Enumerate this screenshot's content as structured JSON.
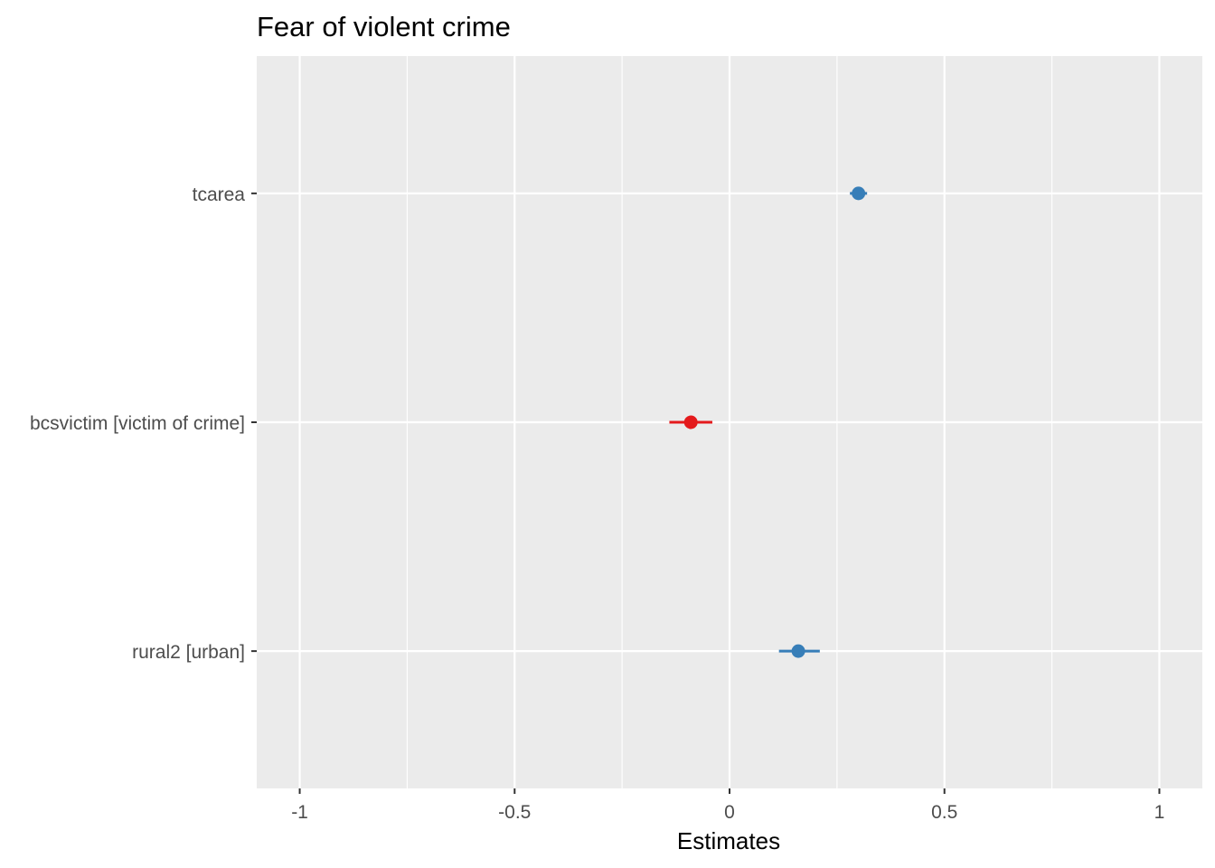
{
  "chart_data": {
    "type": "scatter",
    "subtype": "coefficient-plot",
    "title": "Fear of violent crime",
    "xlabel": "Estimates",
    "ylabel": "",
    "xlim": [
      -1.1,
      1.1
    ],
    "x_ticks": [
      "-1",
      "-0.5",
      "0",
      "0.5",
      "1"
    ],
    "x_tick_values": [
      -1,
      -0.5,
      0,
      0.5,
      1
    ],
    "grid": true,
    "terms": [
      {
        "label": "tcarea",
        "estimate": 0.3,
        "ci_low": 0.28,
        "ci_high": 0.32,
        "color": "#377eb8"
      },
      {
        "label": "bcsvictim [victim of crime]",
        "estimate": -0.09,
        "ci_low": -0.14,
        "ci_high": -0.04,
        "color": "#e41a1c"
      },
      {
        "label": "rural2 [urban]",
        "estimate": 0.16,
        "ci_low": 0.115,
        "ci_high": 0.21,
        "color": "#377eb8"
      }
    ],
    "colors": {
      "panel_bg": "#ebebeb",
      "grid": "#ffffff",
      "positive": "#377eb8",
      "negative": "#e41a1c"
    }
  }
}
